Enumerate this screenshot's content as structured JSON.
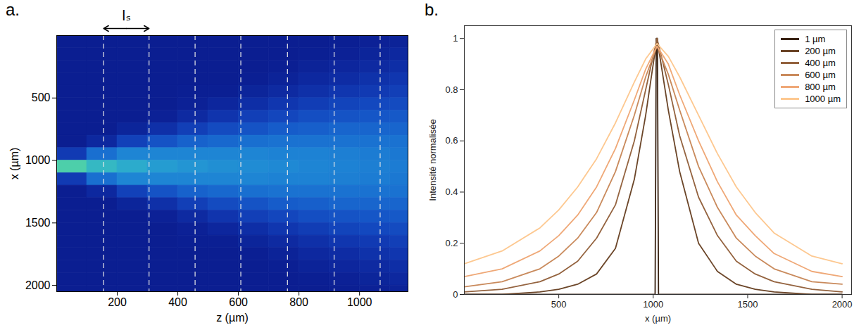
{
  "chart_data": [
    {
      "type": "heatmap",
      "panel_label": "a.",
      "xlabel": "z (µm)",
      "ylabel": "x (µm)",
      "xlim": [
        0,
        1160
      ],
      "xticks": [
        200,
        400,
        600,
        800,
        1000
      ],
      "ylim": [
        2050,
        0
      ],
      "yticks": [
        500,
        1000,
        1500,
        2000
      ],
      "z_edges": [
        0,
        100,
        200,
        300,
        400,
        500,
        600,
        700,
        800,
        900,
        1000,
        1100,
        1200
      ],
      "x_edges": [
        0,
        100,
        200,
        300,
        400,
        500,
        600,
        700,
        800,
        900,
        1000,
        1100,
        1200,
        1300,
        1400,
        1500,
        1600,
        1700,
        1800,
        1900,
        2000,
        2100
      ],
      "value_range": [
        0,
        1
      ],
      "cells": [
        [
          0.02,
          0.02,
          0.02,
          0.02,
          0.02,
          0.02,
          0.02,
          0.02,
          0.02,
          0.17,
          0.7,
          0.17,
          0.02,
          0.02,
          0.02,
          0.02,
          0.02,
          0.02,
          0.02,
          0.02,
          0.02
        ],
        [
          0.02,
          0.02,
          0.02,
          0.02,
          0.02,
          0.02,
          0.02,
          0.02,
          0.08,
          0.36,
          0.6,
          0.36,
          0.08,
          0.02,
          0.02,
          0.02,
          0.02,
          0.02,
          0.02,
          0.02,
          0.02
        ],
        [
          0.02,
          0.02,
          0.02,
          0.02,
          0.02,
          0.02,
          0.02,
          0.06,
          0.2,
          0.43,
          0.55,
          0.43,
          0.2,
          0.06,
          0.02,
          0.02,
          0.02,
          0.02,
          0.02,
          0.02,
          0.02
        ],
        [
          0.02,
          0.02,
          0.02,
          0.02,
          0.02,
          0.02,
          0.04,
          0.12,
          0.27,
          0.43,
          0.5,
          0.43,
          0.27,
          0.12,
          0.04,
          0.02,
          0.02,
          0.02,
          0.02,
          0.02,
          0.02
        ],
        [
          0.02,
          0.02,
          0.02,
          0.02,
          0.03,
          0.04,
          0.09,
          0.19,
          0.32,
          0.43,
          0.48,
          0.43,
          0.32,
          0.19,
          0.09,
          0.04,
          0.03,
          0.02,
          0.02,
          0.02,
          0.02
        ],
        [
          0.02,
          0.02,
          0.02,
          0.02,
          0.03,
          0.07,
          0.14,
          0.24,
          0.34,
          0.43,
          0.46,
          0.43,
          0.34,
          0.24,
          0.14,
          0.07,
          0.03,
          0.02,
          0.02,
          0.02,
          0.02
        ],
        [
          0.02,
          0.02,
          0.02,
          0.03,
          0.06,
          0.11,
          0.19,
          0.27,
          0.36,
          0.43,
          0.45,
          0.43,
          0.36,
          0.27,
          0.19,
          0.11,
          0.06,
          0.03,
          0.02,
          0.02,
          0.02
        ],
        [
          0.02,
          0.02,
          0.03,
          0.05,
          0.09,
          0.15,
          0.22,
          0.3,
          0.37,
          0.42,
          0.44,
          0.42,
          0.37,
          0.3,
          0.22,
          0.15,
          0.09,
          0.05,
          0.03,
          0.02,
          0.02
        ],
        [
          0.02,
          0.03,
          0.05,
          0.08,
          0.12,
          0.18,
          0.25,
          0.31,
          0.37,
          0.42,
          0.43,
          0.42,
          0.37,
          0.31,
          0.25,
          0.18,
          0.12,
          0.08,
          0.05,
          0.03,
          0.02
        ],
        [
          0.03,
          0.04,
          0.07,
          0.1,
          0.15,
          0.21,
          0.27,
          0.33,
          0.37,
          0.41,
          0.42,
          0.41,
          0.37,
          0.33,
          0.27,
          0.21,
          0.15,
          0.1,
          0.07,
          0.04,
          0.03
        ],
        [
          0.04,
          0.06,
          0.09,
          0.13,
          0.17,
          0.23,
          0.28,
          0.33,
          0.37,
          0.4,
          0.41,
          0.4,
          0.37,
          0.33,
          0.28,
          0.23,
          0.17,
          0.13,
          0.09,
          0.06,
          0.04
        ],
        [
          0.05,
          0.08,
          0.11,
          0.15,
          0.19,
          0.24,
          0.29,
          0.33,
          0.37,
          0.39,
          0.4,
          0.39,
          0.37,
          0.33,
          0.29,
          0.24,
          0.19,
          0.15,
          0.11,
          0.08,
          0.05
        ]
      ],
      "dashed_z": [
        155,
        305,
        457,
        608,
        762,
        916,
        1068
      ],
      "annotation": {
        "text": "lₛ",
        "from": 155,
        "to": 305
      }
    },
    {
      "type": "line",
      "panel_label": "b.",
      "xlabel": "x (µm)",
      "ylabel": "Intensité normalisée",
      "xlim": [
        0,
        2050
      ],
      "xticks": [
        500,
        1000,
        1500,
        2000
      ],
      "ylim": [
        0,
        1.05
      ],
      "yticks": [
        0,
        0.2,
        0.4,
        0.6,
        0.8,
        1
      ],
      "legend": "top-right",
      "series": [
        {
          "name": "1 µm",
          "color": "#3a2313",
          "x": [
            0,
            1010,
            1016,
            1022,
            1028,
            2000
          ],
          "values": [
            0,
            0,
            1,
            1,
            0,
            0
          ]
        },
        {
          "name": "200 µm",
          "color": "#6b4528",
          "x": [
            0,
            200,
            400,
            500,
            600,
            700,
            800,
            900,
            960,
            1020,
            1080,
            1140,
            1240,
            1340,
            1440,
            1540,
            1640,
            1840,
            2000
          ],
          "values": [
            0,
            0,
            0.01,
            0.02,
            0.04,
            0.08,
            0.18,
            0.45,
            0.7,
            1,
            0.72,
            0.48,
            0.2,
            0.09,
            0.04,
            0.02,
            0.01,
            0,
            0
          ]
        },
        {
          "name": "400 µm",
          "color": "#94633f",
          "x": [
            0,
            200,
            400,
            500,
            600,
            700,
            800,
            900,
            960,
            1020,
            1080,
            1140,
            1240,
            1340,
            1440,
            1540,
            1640,
            1840,
            2000
          ],
          "values": [
            0.01,
            0.02,
            0.05,
            0.08,
            0.13,
            0.22,
            0.35,
            0.6,
            0.8,
            1,
            0.82,
            0.62,
            0.38,
            0.23,
            0.13,
            0.08,
            0.05,
            0.02,
            0.01
          ]
        },
        {
          "name": "600 µm",
          "color": "#c98a5c",
          "x": [
            0,
            200,
            400,
            500,
            600,
            700,
            800,
            900,
            960,
            1020,
            1080,
            1140,
            1240,
            1340,
            1440,
            1540,
            1640,
            1840,
            2000
          ],
          "values": [
            0.03,
            0.05,
            0.1,
            0.15,
            0.22,
            0.32,
            0.48,
            0.7,
            0.85,
            0.97,
            0.86,
            0.72,
            0.5,
            0.34,
            0.22,
            0.15,
            0.1,
            0.05,
            0.04
          ]
        },
        {
          "name": "800 µm",
          "color": "#efa877",
          "x": [
            0,
            200,
            400,
            500,
            600,
            700,
            800,
            900,
            960,
            1020,
            1080,
            1140,
            1240,
            1340,
            1440,
            1540,
            1640,
            1840,
            2000
          ],
          "values": [
            0.07,
            0.1,
            0.17,
            0.23,
            0.31,
            0.42,
            0.57,
            0.76,
            0.88,
            0.97,
            0.9,
            0.78,
            0.6,
            0.44,
            0.31,
            0.23,
            0.16,
            0.09,
            0.07
          ]
        },
        {
          "name": "1000 µm",
          "color": "#fdc890",
          "x": [
            0,
            200,
            400,
            500,
            600,
            700,
            800,
            900,
            960,
            1020,
            1080,
            1140,
            1240,
            1340,
            1440,
            1540,
            1640,
            1840,
            2000
          ],
          "values": [
            0.12,
            0.17,
            0.26,
            0.33,
            0.42,
            0.53,
            0.67,
            0.83,
            0.92,
            0.98,
            0.93,
            0.85,
            0.7,
            0.55,
            0.42,
            0.32,
            0.24,
            0.15,
            0.12
          ]
        }
      ]
    }
  ]
}
